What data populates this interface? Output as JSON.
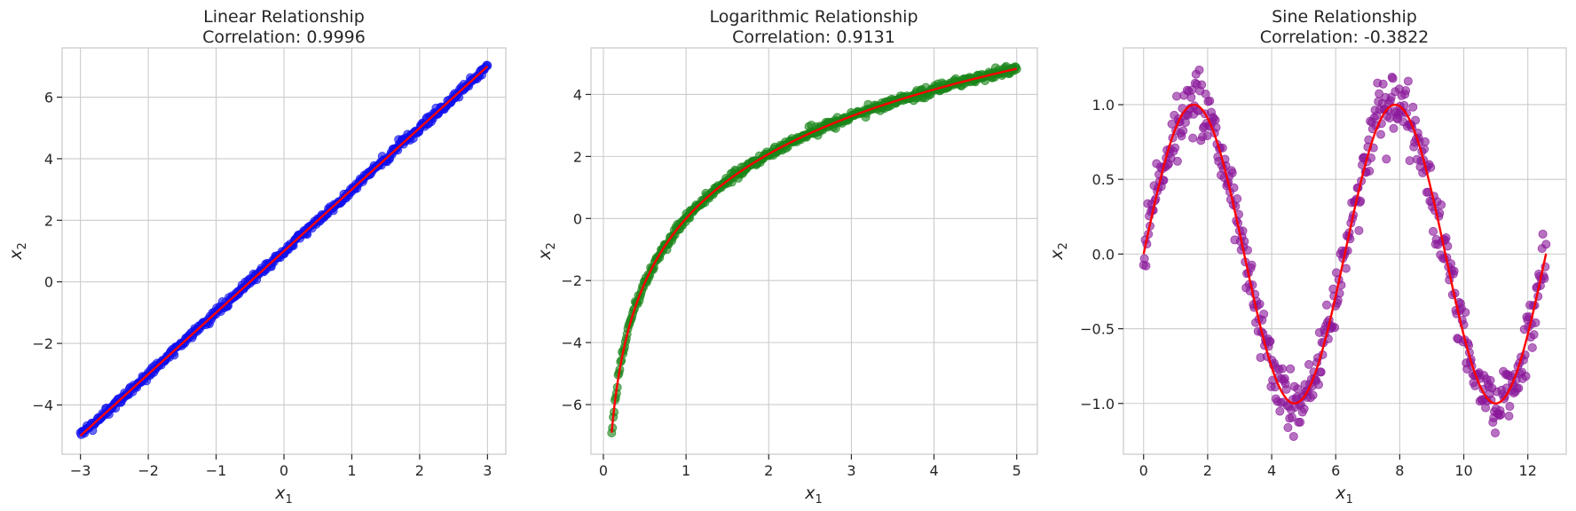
{
  "chart_data": [
    {
      "type": "scatter",
      "title": "Linear Relationship",
      "subtitle": "Correlation: 0.9996",
      "xlabel": "x₁",
      "ylabel": "x₂",
      "xlim": [
        -3.27,
        3.27
      ],
      "ylim": [
        -5.6,
        7.6
      ],
      "xticks": [
        -3,
        -2,
        -1,
        0,
        1,
        2,
        3
      ],
      "yticks": [
        -4,
        -2,
        0,
        2,
        4,
        6
      ],
      "grid": true,
      "point_color": "#1010ee",
      "line_color": "#ff0000",
      "function": "linear",
      "x_range": [
        -3,
        3
      ],
      "noise": 0.07,
      "n_points": 500,
      "line_fit": {
        "slope": 2,
        "intercept": 1
      }
    },
    {
      "type": "scatter",
      "title": "Logarithmic Relationship",
      "subtitle": "Correlation: 0.9131",
      "xlabel": "x₁",
      "ylabel": "x₂",
      "xlim": [
        -0.15,
        5.25
      ],
      "ylim": [
        -7.6,
        5.5
      ],
      "xticks": [
        0,
        1,
        2,
        3,
        4,
        5
      ],
      "yticks": [
        -6,
        -4,
        -2,
        0,
        2,
        4
      ],
      "grid": true,
      "point_color": "#1a861a",
      "line_color": "#ff0000",
      "function": "log",
      "x_range": [
        0.1,
        5
      ],
      "noise": 0.08,
      "n_points": 500,
      "line_fit": {
        "scale": 3,
        "offset": 0
      }
    },
    {
      "type": "scatter",
      "title": "Sine Relationship",
      "subtitle": "Correlation: -0.3822",
      "xlabel": "x₁",
      "ylabel": "x₂",
      "xlim": [
        -0.63,
        13.2
      ],
      "ylim": [
        -1.34,
        1.38
      ],
      "xticks": [
        0,
        2,
        4,
        6,
        8,
        10,
        12
      ],
      "yticks": [
        -1.0,
        -0.5,
        0.0,
        0.5,
        1.0
      ],
      "grid": true,
      "point_color": "#8b1a9b",
      "line_color": "#ff0000",
      "function": "sin",
      "x_range": [
        0,
        12.57
      ],
      "noise": 0.1,
      "n_points": 500,
      "line_fit": {
        "amplitude": 1,
        "frequency": 1
      }
    }
  ]
}
